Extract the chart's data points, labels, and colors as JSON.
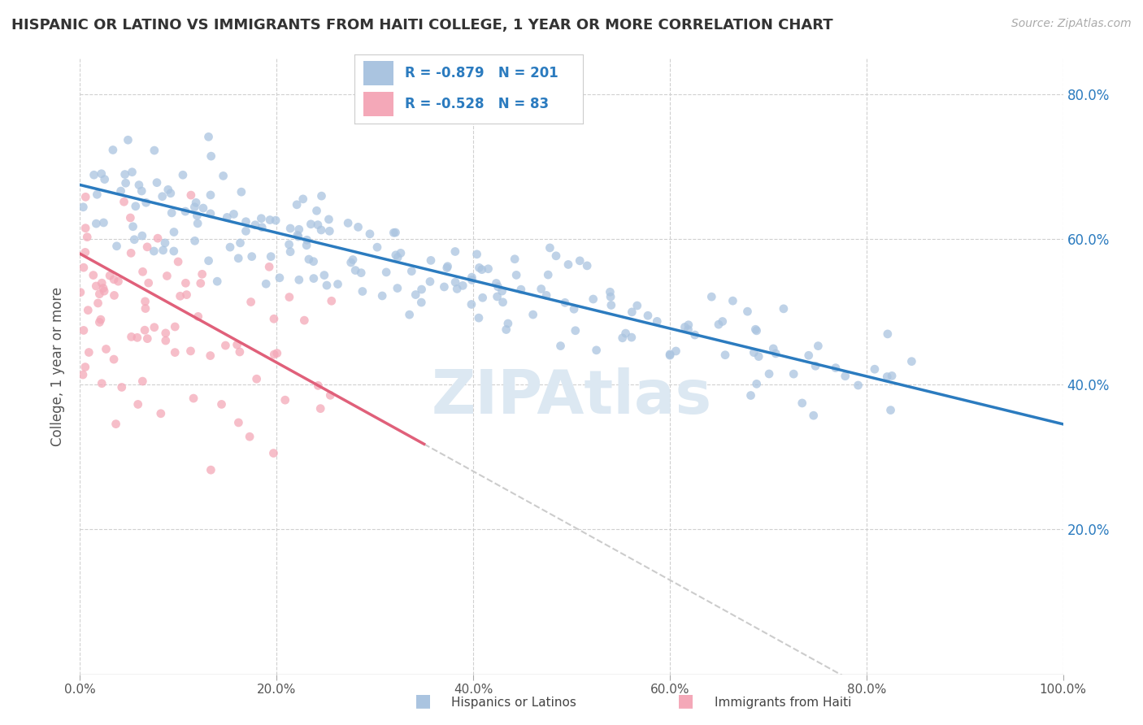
{
  "title": "HISPANIC OR LATINO VS IMMIGRANTS FROM HAITI COLLEGE, 1 YEAR OR MORE CORRELATION CHART",
  "source": "Source: ZipAtlas.com",
  "ylabel": "College, 1 year or more",
  "xlim": [
    0.0,
    1.0
  ],
  "ylim": [
    0.0,
    0.85
  ],
  "x_ticks": [
    0.0,
    0.2,
    0.4,
    0.6,
    0.8,
    1.0
  ],
  "x_tick_labels": [
    "0.0%",
    "20.0%",
    "40.0%",
    "60.0%",
    "80.0%",
    "100.0%"
  ],
  "y_ticks": [
    0.2,
    0.4,
    0.6,
    0.8
  ],
  "y_tick_labels": [
    "20.0%",
    "40.0%",
    "60.0%",
    "80.0%"
  ],
  "blue_R": -0.879,
  "blue_N": 201,
  "pink_R": -0.528,
  "pink_N": 83,
  "blue_color": "#aac4e0",
  "pink_color": "#f4a8b8",
  "blue_line_color": "#2b7bbf",
  "pink_line_color": "#e0607a",
  "watermark": "ZIPAtlas",
  "legend_text_color": "#2b7bbf",
  "grid_color": "#d0d0d0",
  "background_color": "#ffffff",
  "blue_line_intercept": 0.675,
  "blue_line_slope": -0.33,
  "pink_line_intercept": 0.58,
  "pink_line_slope": -0.75
}
